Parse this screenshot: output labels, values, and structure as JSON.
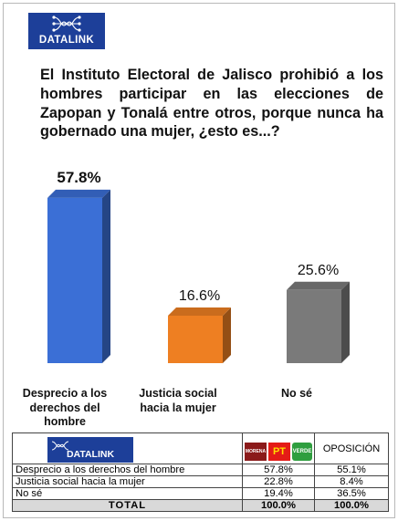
{
  "brand": {
    "name": "DATALINK",
    "color": "#1d3f99"
  },
  "question": "El Instituto Electoral de Jalisco prohibió a los hombres participar en las elecciones de Zapopan y Tonalá entre otros, porque nunca ha gobernado una mujer, ¿esto es...?",
  "chart_data": {
    "type": "bar",
    "title": "El Instituto Electoral de Jalisco prohibió a los hombres participar en las elecciones de Zapopan y Tonalá entre otros, porque nunca ha gobernado una mujer, ¿esto es...?",
    "categories": [
      "Desprecio a los derechos del hombre",
      "Justicia social hacia la mujer",
      "No sé"
    ],
    "values": [
      57.8,
      16.6,
      25.6
    ],
    "value_labels": [
      "57.8%",
      "16.6%",
      "25.6%"
    ],
    "colors": [
      "#3b6fd6",
      "#ee7f22",
      "#7a7a7a"
    ],
    "ylim": [
      0,
      60
    ],
    "grid": false,
    "xlabel": "",
    "ylabel": ""
  },
  "table": {
    "party_logos": [
      "MORENA",
      "PT",
      "VERDE"
    ],
    "opposition_header": "OPOSICIÓN",
    "rows": [
      {
        "label": "Desprecio a los derechos del hombre",
        "coalition": "57.8%",
        "opposition": "55.1%"
      },
      {
        "label": "Justicia social hacia la mujer",
        "coalition": "22.8%",
        "opposition": "8.4%"
      },
      {
        "label": "No sé",
        "coalition": "19.4%",
        "opposition": "36.5%"
      }
    ],
    "total": {
      "label": "TOTAL",
      "coalition": "100.0%",
      "opposition": "100.0%"
    }
  }
}
